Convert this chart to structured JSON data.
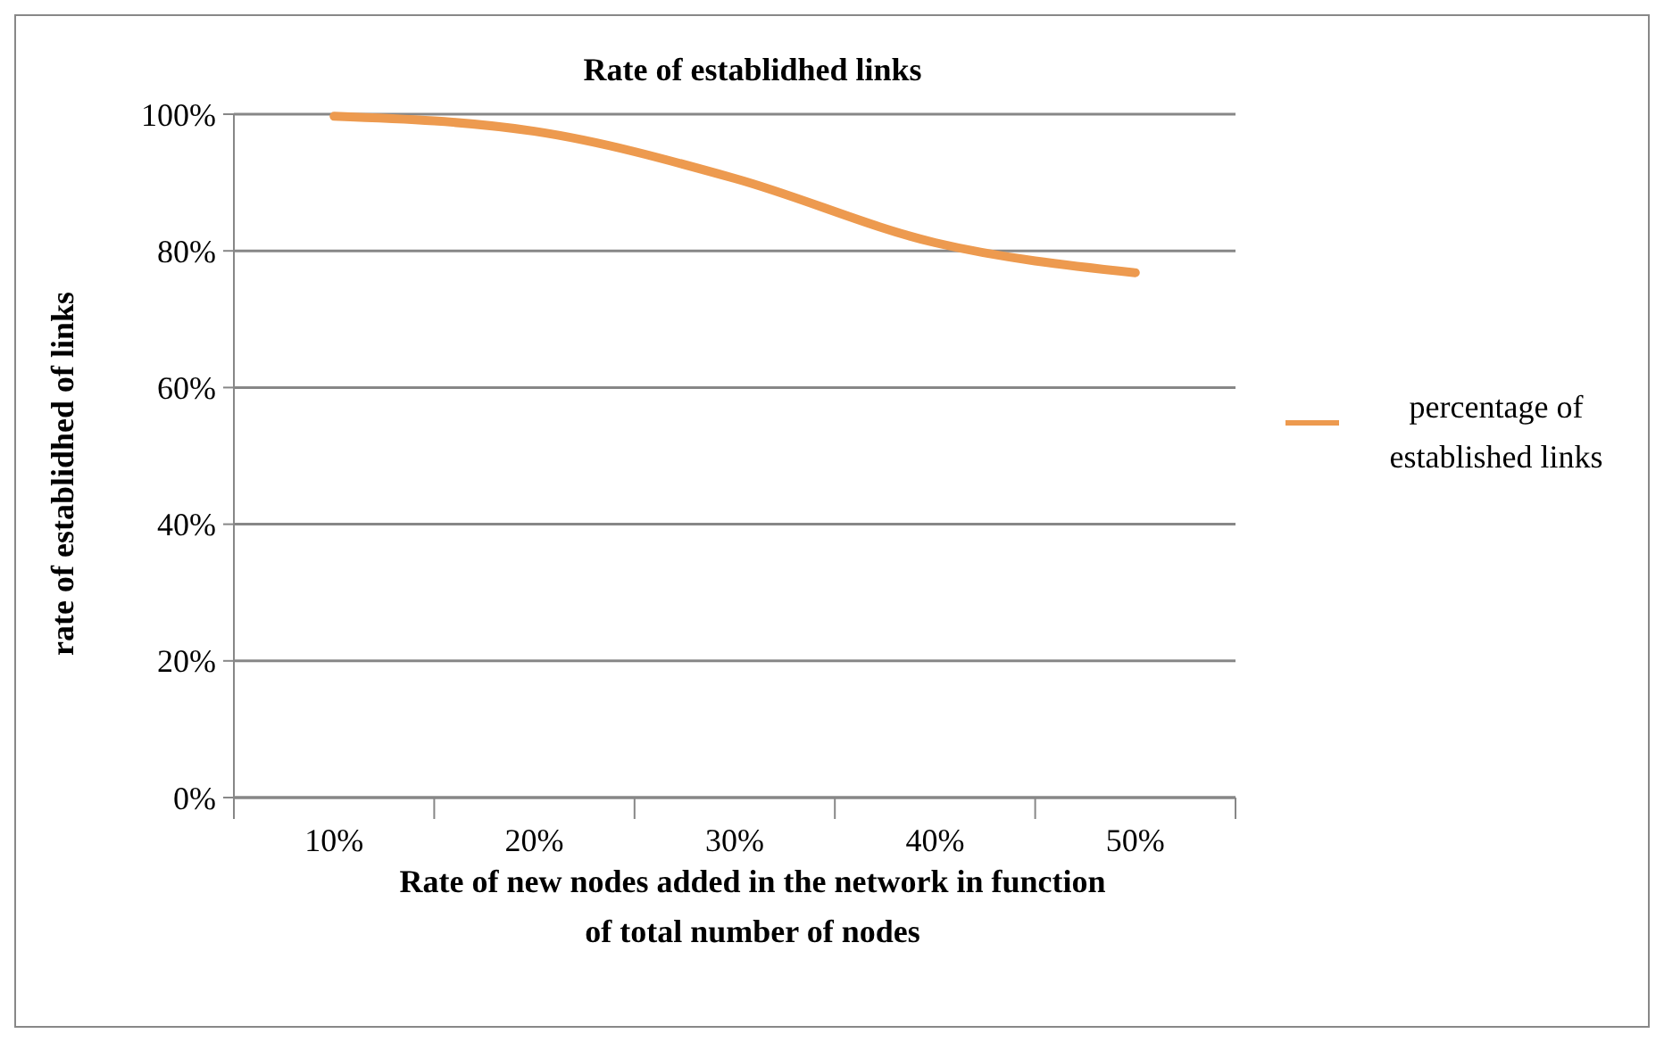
{
  "chart_data": {
    "type": "line",
    "title": "Rate of establidhed links",
    "xlabel": "Rate of new nodes added in the network in function of total number of nodes",
    "ylabel": "rate of establidhed of links",
    "categories": [
      "10%",
      "20%",
      "30%",
      "40%",
      "50%"
    ],
    "series": [
      {
        "name": "percentage of established links",
        "color": "#ed9a4f",
        "values": [
          99.7,
          97.5,
          90.6,
          81.2,
          76.8
        ]
      }
    ],
    "ylim": [
      0,
      100
    ],
    "yticks": [
      {
        "value": 0,
        "label": "0%"
      },
      {
        "value": 20,
        "label": "20%"
      },
      {
        "value": 40,
        "label": "40%"
      },
      {
        "value": 60,
        "label": "60%"
      },
      {
        "value": 80,
        "label": "80%"
      },
      {
        "value": 100,
        "label": "100%"
      }
    ],
    "grid": "y",
    "legend": "right",
    "marker": "none",
    "line_style": "solid"
  }
}
